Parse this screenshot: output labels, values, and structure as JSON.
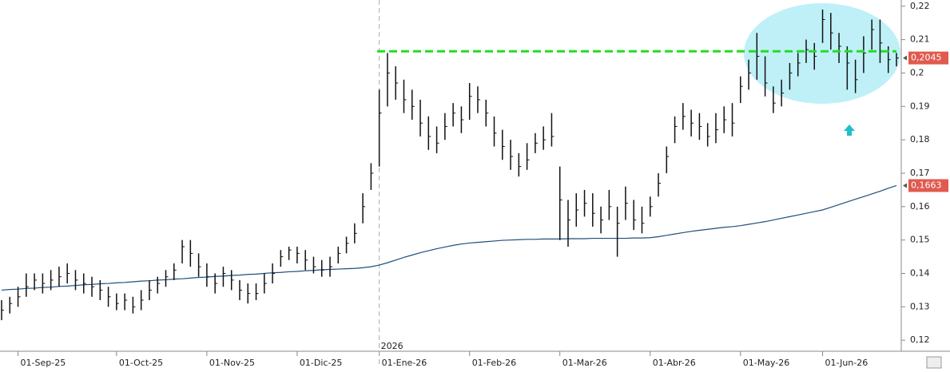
{
  "chart_data": {
    "type": "ohlc",
    "ylim": [
      0.1167,
      0.2209
    ],
    "yticks": [
      {
        "value": 0.12,
        "label": "0,12"
      },
      {
        "value": 0.13,
        "label": "0,13"
      },
      {
        "value": 0.14,
        "label": "0,14"
      },
      {
        "value": 0.15,
        "label": "0,15"
      },
      {
        "value": 0.16,
        "label": "0,16"
      },
      {
        "value": 0.17,
        "label": "0,17"
      },
      {
        "value": 0.18,
        "label": "0,18"
      },
      {
        "value": 0.19,
        "label": "0,19"
      },
      {
        "value": 0.2,
        "label": "0,2"
      },
      {
        "value": 0.21,
        "label": "0,21"
      },
      {
        "value": 0.22,
        "label": "0,22"
      }
    ],
    "categories": [
      null,
      null,
      "01-Sep-25",
      null,
      null,
      null,
      null,
      null,
      null,
      null,
      null,
      null,
      null,
      null,
      "01-Oct-25",
      null,
      null,
      null,
      null,
      null,
      null,
      null,
      null,
      null,
      null,
      "01-Nov-25",
      null,
      null,
      null,
      null,
      null,
      null,
      null,
      null,
      null,
      null,
      "01-Dic-25",
      null,
      null,
      null,
      null,
      null,
      null,
      null,
      null,
      null,
      "01-Ene-26",
      null,
      null,
      null,
      null,
      null,
      null,
      null,
      null,
      null,
      null,
      "01-Feb-26",
      null,
      null,
      null,
      null,
      null,
      null,
      null,
      null,
      null,
      null,
      "01-Mar-26",
      null,
      null,
      null,
      null,
      null,
      null,
      null,
      null,
      null,
      null,
      "01-Abr-26",
      null,
      null,
      null,
      null,
      null,
      null,
      null,
      null,
      null,
      null,
      "01-May-26",
      null,
      null,
      null,
      null,
      null,
      null,
      null,
      null,
      null,
      "01-Jun-26",
      null,
      null,
      null,
      null,
      null,
      null,
      null,
      null,
      null
    ],
    "year_marker": {
      "index": 46,
      "label": "2026"
    },
    "ohlc": {
      "color": "#111111",
      "high": [
        0.132,
        0.133,
        0.136,
        0.14,
        0.14,
        0.14,
        0.141,
        0.142,
        0.143,
        0.141,
        0.14,
        0.139,
        0.138,
        0.136,
        0.134,
        0.134,
        0.133,
        0.135,
        0.138,
        0.139,
        0.141,
        0.143,
        0.15,
        0.15,
        0.146,
        0.143,
        0.14,
        0.142,
        0.141,
        0.138,
        0.137,
        0.137,
        0.14,
        0.143,
        0.147,
        0.148,
        0.148,
        0.147,
        0.145,
        0.144,
        0.145,
        0.148,
        0.151,
        0.155,
        0.164,
        0.173,
        0.195,
        0.206,
        0.202,
        0.198,
        0.195,
        0.192,
        0.187,
        0.184,
        0.188,
        0.191,
        0.19,
        0.197,
        0.196,
        0.192,
        0.187,
        0.183,
        0.18,
        0.176,
        0.179,
        0.182,
        0.184,
        0.188,
        0.172,
        0.162,
        0.164,
        0.165,
        0.164,
        0.16,
        0.165,
        0.16,
        0.166,
        0.162,
        0.16,
        0.163,
        0.17,
        0.178,
        0.187,
        0.191,
        0.189,
        0.188,
        0.185,
        0.188,
        0.19,
        0.191,
        0.199,
        0.204,
        0.212,
        0.205,
        0.196,
        0.198,
        0.203,
        0.206,
        0.21,
        0.209,
        0.219,
        0.218,
        0.212,
        0.208,
        0.204,
        0.211,
        0.216,
        0.216,
        0.208,
        0.206
      ],
      "low": [
        0.126,
        0.128,
        0.13,
        0.133,
        0.135,
        0.134,
        0.135,
        0.136,
        0.137,
        0.135,
        0.134,
        0.133,
        0.132,
        0.13,
        0.129,
        0.129,
        0.128,
        0.129,
        0.132,
        0.134,
        0.136,
        0.138,
        0.143,
        0.142,
        0.139,
        0.136,
        0.134,
        0.136,
        0.135,
        0.132,
        0.131,
        0.132,
        0.134,
        0.137,
        0.142,
        0.144,
        0.143,
        0.141,
        0.14,
        0.139,
        0.139,
        0.143,
        0.146,
        0.149,
        0.155,
        0.165,
        0.172,
        0.19,
        0.192,
        0.188,
        0.186,
        0.181,
        0.177,
        0.176,
        0.18,
        0.184,
        0.182,
        0.186,
        0.188,
        0.184,
        0.178,
        0.174,
        0.171,
        0.169,
        0.171,
        0.176,
        0.177,
        0.178,
        0.15,
        0.148,
        0.154,
        0.157,
        0.154,
        0.152,
        0.156,
        0.145,
        0.156,
        0.153,
        0.152,
        0.157,
        0.163,
        0.17,
        0.179,
        0.183,
        0.181,
        0.18,
        0.178,
        0.179,
        0.182,
        0.181,
        0.191,
        0.195,
        0.198,
        0.193,
        0.188,
        0.19,
        0.195,
        0.199,
        0.203,
        0.201,
        0.209,
        0.207,
        0.203,
        0.195,
        0.194,
        0.2,
        0.207,
        0.203,
        0.2,
        0.202
      ],
      "close": [
        0.129,
        0.131,
        0.133,
        0.136,
        0.138,
        0.137,
        0.138,
        0.139,
        0.14,
        0.138,
        0.137,
        0.136,
        0.135,
        0.133,
        0.131,
        0.132,
        0.13,
        0.132,
        0.135,
        0.137,
        0.139,
        0.141,
        0.148,
        0.146,
        0.142,
        0.139,
        0.137,
        0.14,
        0.138,
        0.135,
        0.134,
        0.134,
        0.137,
        0.14,
        0.145,
        0.147,
        0.146,
        0.144,
        0.142,
        0.141,
        0.142,
        0.146,
        0.149,
        0.152,
        0.16,
        0.17,
        0.188,
        0.2,
        0.197,
        0.192,
        0.19,
        0.185,
        0.181,
        0.179,
        0.184,
        0.188,
        0.186,
        0.193,
        0.192,
        0.188,
        0.182,
        0.178,
        0.175,
        0.172,
        0.174,
        0.179,
        0.18,
        0.181,
        0.162,
        0.156,
        0.159,
        0.161,
        0.158,
        0.156,
        0.16,
        0.155,
        0.161,
        0.156,
        0.155,
        0.16,
        0.167,
        0.175,
        0.184,
        0.187,
        0.185,
        0.184,
        0.181,
        0.183,
        0.186,
        0.185,
        0.196,
        0.2,
        0.205,
        0.197,
        0.191,
        0.194,
        0.2,
        0.203,
        0.207,
        0.205,
        0.216,
        0.212,
        0.208,
        0.203,
        0.198,
        0.206,
        0.213,
        0.209,
        0.204,
        0.2045
      ]
    },
    "moving_average": {
      "color": "#1f4e79",
      "values": [
        0.135,
        0.1352,
        0.1353,
        0.1355,
        0.1356,
        0.1358,
        0.1359,
        0.1361,
        0.1362,
        0.1364,
        0.1366,
        0.1367,
        0.1369,
        0.137,
        0.1372,
        0.1373,
        0.1375,
        0.1377,
        0.1378,
        0.138,
        0.1381,
        0.1383,
        0.1384,
        0.1386,
        0.1388,
        0.1389,
        0.1391,
        0.1392,
        0.1394,
        0.1395,
        0.1397,
        0.1398,
        0.14,
        0.1402,
        0.1403,
        0.1405,
        0.1406,
        0.1408,
        0.1409,
        0.1411,
        0.1412,
        0.1413,
        0.1414,
        0.1415,
        0.1417,
        0.142,
        0.1425,
        0.1432,
        0.144,
        0.1448,
        0.1455,
        0.1462,
        0.1468,
        0.1474,
        0.1479,
        0.1484,
        0.1488,
        0.1491,
        0.1493,
        0.1495,
        0.1497,
        0.1499,
        0.15,
        0.1501,
        0.1502,
        0.1502,
        0.1503,
        0.1503,
        0.1503,
        0.1504,
        0.1504,
        0.1504,
        0.1505,
        0.1505,
        0.1505,
        0.1505,
        0.1505,
        0.1506,
        0.1506,
        0.1507,
        0.151,
        0.1514,
        0.1518,
        0.1522,
        0.1526,
        0.1529,
        0.1532,
        0.1535,
        0.1538,
        0.154,
        0.1543,
        0.1547,
        0.1551,
        0.1555,
        0.156,
        0.1565,
        0.157,
        0.1575,
        0.158,
        0.1585,
        0.159,
        0.1598,
        0.1606,
        0.1614,
        0.1622,
        0.163,
        0.1638,
        0.1646,
        0.1655,
        0.1663
      ]
    },
    "hline": {
      "value": 0.2065,
      "color": "#22dd22"
    },
    "price_labels": [
      {
        "value": 0.2045,
        "label": "0,2045",
        "color": "#e05a4f"
      },
      {
        "value": 0.1663,
        "label": "0,1663",
        "color": "#e05a4f"
      }
    ]
  }
}
